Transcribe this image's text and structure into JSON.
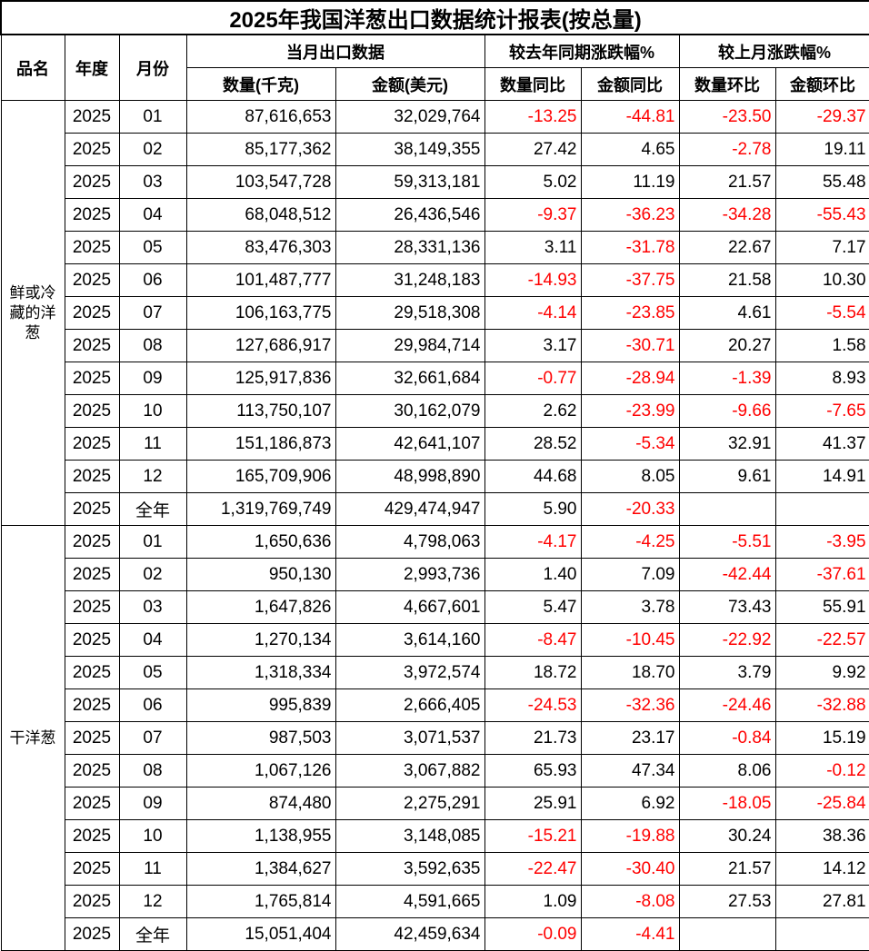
{
  "title": "2025年我国洋葱出口数据统计报表(按总量)",
  "headers": {
    "product": "品名",
    "year": "年度",
    "month": "月份",
    "monthly_export": "当月出口数据",
    "yoy": "较去年同期涨跌幅%",
    "mom": "较上月涨跌幅%",
    "qty": "数量(千克)",
    "amount": "金额(美元)",
    "qty_yoy": "数量同比",
    "amt_yoy": "金额同比",
    "qty_mom": "数量环比",
    "amt_mom": "金额环比"
  },
  "colors": {
    "negative": "#ff0000",
    "positive": "#000000"
  },
  "groups": [
    {
      "product": "鲜或冷藏的洋葱",
      "rows": [
        [
          "2025",
          "01",
          "87,616,653",
          "32,029,764",
          "-13.25",
          "-44.81",
          "-23.50",
          "-29.37"
        ],
        [
          "2025",
          "02",
          "85,177,362",
          "38,149,355",
          "27.42",
          "4.65",
          "-2.78",
          "19.11"
        ],
        [
          "2025",
          "03",
          "103,547,728",
          "59,313,181",
          "5.02",
          "11.19",
          "21.57",
          "55.48"
        ],
        [
          "2025",
          "04",
          "68,048,512",
          "26,436,546",
          "-9.37",
          "-36.23",
          "-34.28",
          "-55.43"
        ],
        [
          "2025",
          "05",
          "83,476,303",
          "28,331,136",
          "3.11",
          "-31.78",
          "22.67",
          "7.17"
        ],
        [
          "2025",
          "06",
          "101,487,777",
          "31,248,183",
          "-14.93",
          "-37.75",
          "21.58",
          "10.30"
        ],
        [
          "2025",
          "07",
          "106,163,775",
          "29,518,308",
          "-4.14",
          "-23.85",
          "4.61",
          "-5.54"
        ],
        [
          "2025",
          "08",
          "127,686,917",
          "29,984,714",
          "3.17",
          "-30.71",
          "20.27",
          "1.58"
        ],
        [
          "2025",
          "09",
          "125,917,836",
          "32,661,684",
          "-0.77",
          "-28.94",
          "-1.39",
          "8.93"
        ],
        [
          "2025",
          "10",
          "113,750,107",
          "30,162,079",
          "2.62",
          "-23.99",
          "-9.66",
          "-7.65"
        ],
        [
          "2025",
          "11",
          "151,186,873",
          "42,641,107",
          "28.52",
          "-5.34",
          "32.91",
          "41.37"
        ],
        [
          "2025",
          "12",
          "165,709,906",
          "48,998,890",
          "44.68",
          "8.05",
          "9.61",
          "14.91"
        ],
        [
          "2025",
          "全年",
          "1,319,769,749",
          "429,474,947",
          "5.90",
          "-20.33",
          "",
          ""
        ]
      ]
    },
    {
      "product": "干洋葱",
      "rows": [
        [
          "2025",
          "01",
          "1,650,636",
          "4,798,063",
          "-4.17",
          "-4.25",
          "-5.51",
          "-3.95"
        ],
        [
          "2025",
          "02",
          "950,130",
          "2,993,736",
          "1.40",
          "7.09",
          "-42.44",
          "-37.61"
        ],
        [
          "2025",
          "03",
          "1,647,826",
          "4,667,601",
          "5.47",
          "3.78",
          "73.43",
          "55.91"
        ],
        [
          "2025",
          "04",
          "1,270,134",
          "3,614,160",
          "-8.47",
          "-10.45",
          "-22.92",
          "-22.57"
        ],
        [
          "2025",
          "05",
          "1,318,334",
          "3,972,574",
          "18.72",
          "18.70",
          "3.79",
          "9.92"
        ],
        [
          "2025",
          "06",
          "995,839",
          "2,666,405",
          "-24.53",
          "-32.36",
          "-24.46",
          "-32.88"
        ],
        [
          "2025",
          "07",
          "987,503",
          "3,071,537",
          "21.73",
          "23.17",
          "-0.84",
          "15.19"
        ],
        [
          "2025",
          "08",
          "1,067,126",
          "3,067,882",
          "65.93",
          "47.34",
          "8.06",
          "-0.12"
        ],
        [
          "2025",
          "09",
          "874,480",
          "2,275,291",
          "25.91",
          "6.92",
          "-18.05",
          "-25.84"
        ],
        [
          "2025",
          "10",
          "1,138,955",
          "3,148,085",
          "-15.21",
          "-19.88",
          "30.24",
          "38.36"
        ],
        [
          "2025",
          "11",
          "1,384,627",
          "3,592,635",
          "-22.47",
          "-30.40",
          "21.57",
          "14.12"
        ],
        [
          "2025",
          "12",
          "1,765,814",
          "4,591,665",
          "1.09",
          "-8.08",
          "27.53",
          "27.81"
        ],
        [
          "2025",
          "全年",
          "15,051,404",
          "42,459,634",
          "-0.09",
          "-4.41",
          "",
          ""
        ]
      ]
    }
  ]
}
